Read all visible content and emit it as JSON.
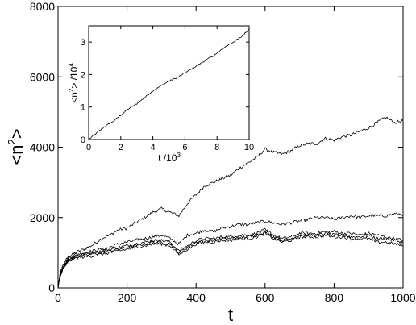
{
  "chart_data": [
    {
      "type": "line",
      "xlabel": "t",
      "ylabel": "<n²>",
      "ylabel_base": "<n",
      "ylabel_sup": "2",
      "ylabel_end": ">",
      "xlim": [
        0,
        1000
      ],
      "ylim": [
        0,
        8000
      ],
      "x_ticks": [
        0,
        200,
        400,
        600,
        800,
        1000
      ],
      "y_ticks": [
        0,
        2000,
        4000,
        6000,
        8000
      ],
      "x_tick_labels": [
        "0",
        "200",
        "400",
        "600",
        "800",
        "1000"
      ],
      "y_tick_labels": [
        "0",
        "2000",
        "4000",
        "6000",
        "8000"
      ],
      "grid": false,
      "x": [
        0,
        5,
        10,
        20,
        30,
        50,
        75,
        100,
        125,
        150,
        175,
        200,
        225,
        250,
        275,
        300,
        325,
        350,
        375,
        400,
        425,
        450,
        475,
        500,
        525,
        550,
        575,
        600,
        625,
        650,
        675,
        700,
        725,
        750,
        775,
        800,
        825,
        850,
        875,
        900,
        925,
        950,
        975,
        1000
      ],
      "series": [
        {
          "values": [
            0,
            350,
            550,
            750,
            880,
            1000,
            1100,
            1220,
            1400,
            1500,
            1650,
            1700,
            1850,
            2000,
            2150,
            2250,
            2150,
            2050,
            2400,
            2650,
            2900,
            3000,
            3100,
            3200,
            3400,
            3550,
            3700,
            3950,
            3850,
            3800,
            3900,
            4050,
            4100,
            4100,
            4250,
            4200,
            4300,
            4350,
            4450,
            4550,
            4700,
            4850,
            4700,
            4750
          ]
        },
        {
          "values": [
            0,
            300,
            500,
            700,
            830,
            950,
            1000,
            1050,
            1100,
            1150,
            1250,
            1300,
            1350,
            1400,
            1450,
            1500,
            1400,
            1250,
            1500,
            1550,
            1650,
            1600,
            1700,
            1750,
            1800,
            1800,
            1850,
            1900,
            1850,
            1800,
            1850,
            1900,
            1950,
            2000,
            2000,
            1950,
            2000,
            2050,
            2000,
            2050,
            2050,
            2050,
            2100,
            2100
          ]
        },
        {
          "values": [
            0,
            300,
            480,
            680,
            800,
            920,
            960,
            1000,
            1050,
            1100,
            1150,
            1200,
            1250,
            1300,
            1350,
            1350,
            1300,
            1050,
            1200,
            1350,
            1400,
            1400,
            1450,
            1450,
            1500,
            1500,
            1550,
            1650,
            1500,
            1400,
            1450,
            1550,
            1550,
            1550,
            1600,
            1600,
            1550,
            1550,
            1500,
            1550,
            1500,
            1450,
            1400,
            1350
          ]
        },
        {
          "values": [
            0,
            290,
            460,
            650,
            780,
            880,
            920,
            960,
            1000,
            1050,
            1100,
            1150,
            1200,
            1250,
            1300,
            1300,
            1250,
            1000,
            1150,
            1300,
            1350,
            1350,
            1400,
            1400,
            1450,
            1450,
            1500,
            1600,
            1450,
            1350,
            1400,
            1500,
            1500,
            1500,
            1550,
            1500,
            1500,
            1450,
            1450,
            1500,
            1400,
            1400,
            1350,
            1300
          ]
        },
        {
          "values": [
            0,
            280,
            440,
            620,
            750,
            850,
            880,
            910,
            950,
            1000,
            1050,
            1100,
            1150,
            1200,
            1250,
            1250,
            1200,
            950,
            1100,
            1250,
            1300,
            1300,
            1350,
            1350,
            1400,
            1400,
            1450,
            1550,
            1400,
            1300,
            1350,
            1450,
            1450,
            1450,
            1500,
            1450,
            1450,
            1400,
            1400,
            1400,
            1300,
            1300,
            1250,
            1200
          ]
        }
      ]
    },
    {
      "type": "line",
      "xlabel": "t /10",
      "xlabel_sup": "3",
      "ylabel": "<n",
      "ylabel_sup1": "2",
      "ylabel_mid": "> /10",
      "ylabel_sup2": "4",
      "xlim": [
        0,
        10
      ],
      "ylim": [
        0,
        3.5
      ],
      "x_ticks": [
        0,
        2,
        4,
        6,
        8,
        10
      ],
      "y_ticks": [
        0,
        1,
        2,
        3
      ],
      "x_tick_labels": [
        "0",
        "2",
        "4",
        "6",
        "8",
        "10"
      ],
      "y_tick_labels": [
        "0",
        "1",
        "2",
        "3"
      ],
      "grid": false,
      "x": [
        0,
        0.5,
        1,
        1.5,
        2,
        2.5,
        3,
        3.5,
        4,
        4.5,
        5,
        5.5,
        6,
        6.5,
        7,
        7.5,
        8,
        8.5,
        9,
        9.5,
        10
      ],
      "series": [
        {
          "values": [
            0,
            0.2,
            0.4,
            0.55,
            0.75,
            0.95,
            1.1,
            1.3,
            1.5,
            1.65,
            1.8,
            1.9,
            2.05,
            2.2,
            2.35,
            2.5,
            2.65,
            2.85,
            3.0,
            3.15,
            3.4
          ]
        }
      ]
    }
  ]
}
